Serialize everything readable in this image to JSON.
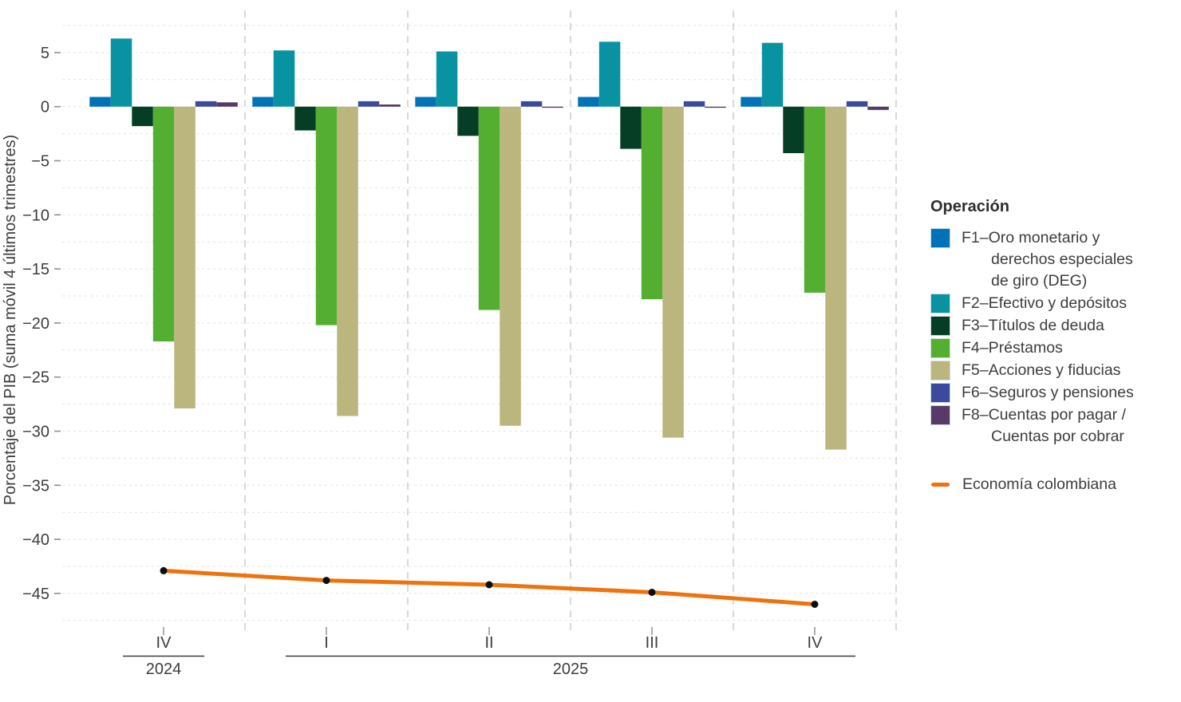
{
  "chart_data": {
    "type": "bar",
    "title": "",
    "ylabel": "Porcentaje del PIB (suma móvil 4 últimos trimestres)",
    "xlabel": "",
    "categories": [
      "IV",
      "I",
      "II",
      "III",
      "IV"
    ],
    "x_axis": {
      "year_groups": [
        {
          "label": "2024",
          "from": 0,
          "to": 0
        },
        {
          "label": "2025",
          "from": 1,
          "to": 4
        }
      ]
    },
    "ylim": [
      -48.4,
      8.9
    ],
    "yticks": [
      5,
      0,
      -5,
      -10,
      -15,
      -20,
      -25,
      -30,
      -35,
      -40,
      -45
    ],
    "grid": {
      "show": true,
      "step": 2.5,
      "min": -47.5,
      "max": 7.5
    },
    "legend_position": "right",
    "series": [
      {
        "id": "F1",
        "name": "F1–Oro monetario y derechos especiales de giro (DEG)",
        "color": "#0072B8",
        "values": [
          0.9,
          0.9,
          0.9,
          0.9,
          0.9
        ]
      },
      {
        "id": "F2",
        "name": "F2–Efectivo y depósitos",
        "color": "#0993A2",
        "values": [
          6.3,
          5.2,
          5.1,
          6.0,
          5.9
        ]
      },
      {
        "id": "F3",
        "name": "F3–Títulos de deuda",
        "color": "#053E25",
        "values": [
          -1.8,
          -2.2,
          -2.7,
          -3.9,
          -4.3
        ]
      },
      {
        "id": "F4",
        "name": "F4–Préstamos",
        "color": "#54AE32",
        "values": [
          -21.7,
          -20.2,
          -18.8,
          -17.8,
          -17.2
        ]
      },
      {
        "id": "F5",
        "name": "F5–Acciones y fiducias",
        "color": "#BAB67E",
        "values": [
          -27.9,
          -28.6,
          -29.5,
          -30.6,
          -31.7
        ]
      },
      {
        "id": "F6",
        "name": "F6–Seguros y pensiones",
        "color": "#3C4A9D",
        "values": [
          0.5,
          0.5,
          0.5,
          0.5,
          0.5
        ]
      },
      {
        "id": "F8",
        "name": "F8–Cuentas por pagar / Cuentas por cobrar",
        "color": "#573A68",
        "values": [
          0.4,
          0.2,
          -0.1,
          -0.1,
          -0.3
        ]
      }
    ],
    "line_series": {
      "name": "Economía colombiana",
      "color": "#EE720D",
      "point_color": "#0d0d0d",
      "values": [
        -42.9,
        -43.8,
        -44.2,
        -44.9,
        -46.0
      ]
    },
    "legend": {
      "title": "Operación",
      "items": [
        {
          "series_id": "F1",
          "lines": [
            "F1–Oro monetario y",
            "derechos especiales",
            "de giro (DEG)"
          ]
        },
        {
          "series_id": "F2",
          "lines": [
            "F2–Efectivo y depósitos"
          ]
        },
        {
          "series_id": "F3",
          "lines": [
            "F3–Títulos de deuda"
          ]
        },
        {
          "series_id": "F4",
          "lines": [
            "F4–Préstamos"
          ]
        },
        {
          "series_id": "F5",
          "lines": [
            "F5–Acciones y fiducias"
          ]
        },
        {
          "series_id": "F6",
          "lines": [
            "F6–Seguros y pensiones"
          ]
        },
        {
          "series_id": "F8",
          "lines": [
            "F8–Cuentas por pagar /",
            "Cuentas por cobrar"
          ]
        }
      ]
    }
  }
}
